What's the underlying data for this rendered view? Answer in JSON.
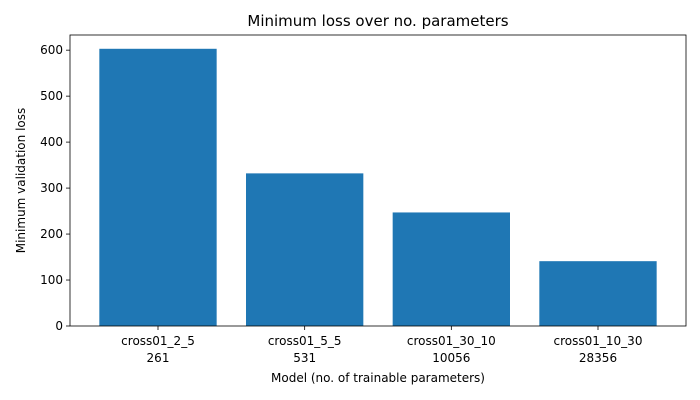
{
  "chart_data": {
    "type": "bar",
    "title": "Minimum loss over no. parameters",
    "xlabel": "Model (no. of trainable parameters)",
    "ylabel": "Minimum validation loss",
    "categories": [
      "cross01_2_5",
      "cross01_5_5",
      "cross01_30_10",
      "cross01_10_30"
    ],
    "category_sublabels": [
      "261",
      "531",
      "10056",
      "28356"
    ],
    "values": [
      603,
      332,
      247,
      141
    ],
    "ylim": [
      0,
      633
    ],
    "yticks": [
      0,
      100,
      200,
      300,
      400,
      500,
      600
    ],
    "bar_color": "#1f77b4",
    "grid": false
  }
}
